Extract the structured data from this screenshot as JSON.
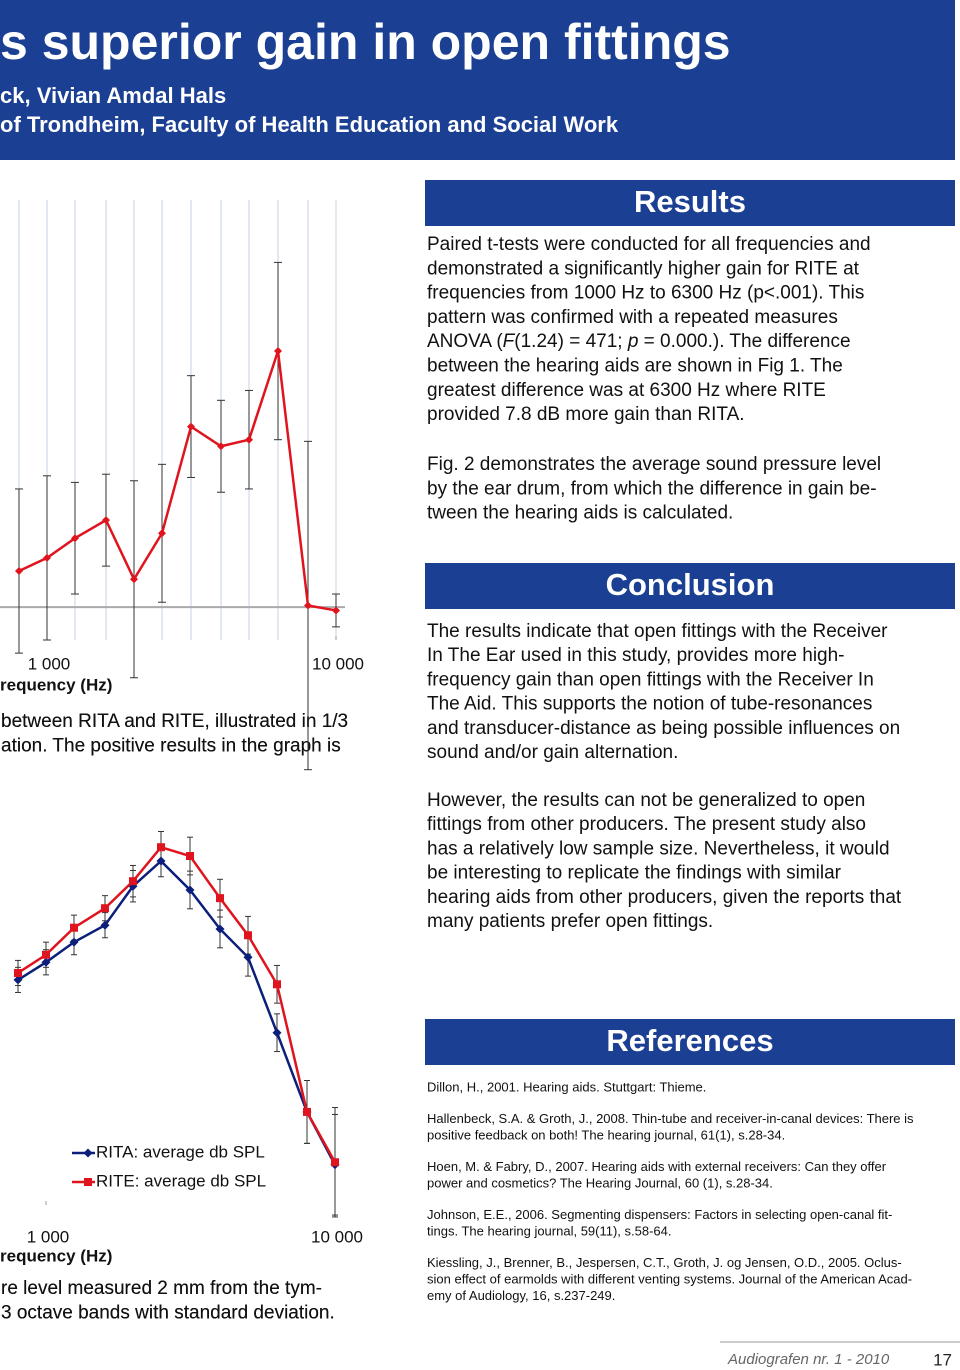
{
  "header": {
    "title": "s superior gain in open fittings",
    "authors": "ck, Vivian Amdal Hals",
    "affiliation": "of Trondheim, Faculty of Health Education and Social Work"
  },
  "figures": [
    {
      "type": "line",
      "x": [
        800,
        1000,
        1250,
        1600,
        2000,
        2500,
        3150,
        4000,
        5000,
        6300,
        8000,
        10000
      ],
      "values": [
        1.1,
        1.5,
        2.1,
        2.65,
        0.85,
        2.25,
        5.5,
        4.9,
        5.1,
        7.8,
        0.05,
        -0.1
      ],
      "errors": [
        2.5,
        2.5,
        1.7,
        1.4,
        3,
        2.1,
        1.55,
        1.4,
        1.5,
        2.7,
        5,
        0.5
      ],
      "color": "#e0141e",
      "xlog": true,
      "xlim": [
        682,
        16600
      ],
      "ylim": [
        -1,
        12.4
      ],
      "xticks": [
        {
          "value": 1000,
          "label": "1 000"
        },
        {
          "value": 10000,
          "label": "10 000"
        }
      ],
      "xlabel": "requency (Hz)",
      "grid": true
    },
    {
      "type": "line",
      "x": [
        800,
        1000,
        1250,
        1600,
        2000,
        2500,
        3150,
        4000,
        5000,
        6300,
        8000,
        10000
      ],
      "series": [
        {
          "name": "RITA: average db SPL",
          "color": "#0c1f7a",
          "marker": "diamond",
          "values": [
            65.8,
            68.6,
            71.8,
            74.5,
            80.7,
            84.7,
            80.1,
            73.9,
            69.4,
            57.4,
            44.8,
            36.4
          ],
          "errors": [
            2,
            2,
            2,
            2,
            2.5,
            2.5,
            3,
            3,
            3,
            3,
            5,
            8
          ]
        },
        {
          "name": "RITE: average db SPL",
          "color": "#e0141e",
          "marker": "square",
          "values": [
            66.9,
            69.8,
            74.1,
            77.2,
            81.5,
            86.9,
            85.5,
            78.8,
            72.9,
            65.1,
            44.8,
            36.8
          ],
          "errors": [
            2,
            2,
            2,
            2,
            2.5,
            2.5,
            3,
            3,
            3,
            3,
            5,
            8.7
          ]
        }
      ],
      "xlog": true,
      "xlim": [
        682,
        16600
      ],
      "ylim": [
        30,
        96
      ],
      "xticks": [
        {
          "value": 1000,
          "label": "1 000"
        },
        {
          "value": 10000,
          "label": "10 000"
        }
      ],
      "xlabel": "requency (Hz)",
      "grid": false
    }
  ],
  "captions": [
    [
      "between RITA and RITE, illustrated in 1/3",
      "ation. The positive results in the graph is"
    ],
    [
      "re level measured  2 mm from the tym-",
      "3 octave bands with standard deviation."
    ]
  ],
  "results": {
    "heading": "Results",
    "paragraphs": [
      [
        "Paired t-tests were conducted for all frequencies and",
        "demonstrated a significantly higher gain for RITE at",
        "frequencies from 1000 Hz to 6300 Hz (p<.001). This",
        "pattern was confirmed with a repeated measures",
        [
          "ANOVA (",
          "F",
          "(1.24) = 471; ",
          "p",
          " = 0.000.). The difference"
        ],
        "between the hearing aids are shown in Fig 1. The",
        "greatest difference was at 6300 Hz where RITE",
        "provided 7.8 dB more gain than RITA."
      ],
      [
        "Fig. 2 demonstrates the average sound pressure level",
        "by the ear drum, from which the difference in gain be-",
        "tween the hearing aids is calculated."
      ]
    ]
  },
  "conclusion": {
    "heading": "Conclusion",
    "paragraphs": [
      [
        "The results indicate that open fittings with the Receiver",
        "In The Ear used in this study, provides more high-",
        "frequency gain than open fittings with the Receiver In",
        "The Aid. This supports the notion of tube-resonances",
        "and transducer-distance as being possible influences on",
        "sound and/or gain alternation."
      ],
      [
        "However, the results can not be generalized to open",
        "fittings from other producers. The present study also",
        "has a relatively low sample size. Nevertheless, it would",
        "be interesting to replicate the findings with similar",
        "hearing aids from other producers, given the reports that",
        "many patients prefer open fittings."
      ]
    ]
  },
  "references": {
    "heading": "References",
    "entries": [
      [
        "Dillon, H., 2001. Hearing aids. Stuttgart: Thieme."
      ],
      [
        "Hallenbeck, S.A. & Groth, J., 2008. Thin-tube and receiver-in-canal devices: There is",
        "positive feedback on both! The hearing journal, 61(1), s.28-34."
      ],
      [
        "Hoen, M. & Fabry, D., 2007. Hearing aids with external receivers: Can they offer",
        "power and cosmetics? The Hearing Journal, 60 (1), s.28-34."
      ],
      [
        "Johnson, E.E., 2006. Segmenting dispensers: Factors in selecting open-canal fit-",
        "tings. The hearing journal, 59(11), s.58-64."
      ],
      [
        "Kiessling, J., Brenner, B., Jespersen, C.T., Groth, J. og Jensen, O.D., 2005. Oclus-",
        "sion effect of earmolds with different venting systems. Journal of the American Acad-",
        "emy of Audiology, 16, s.237-249."
      ]
    ]
  },
  "footer": {
    "journal": "Audiografen nr. 1 - 2010",
    "page": "17"
  }
}
